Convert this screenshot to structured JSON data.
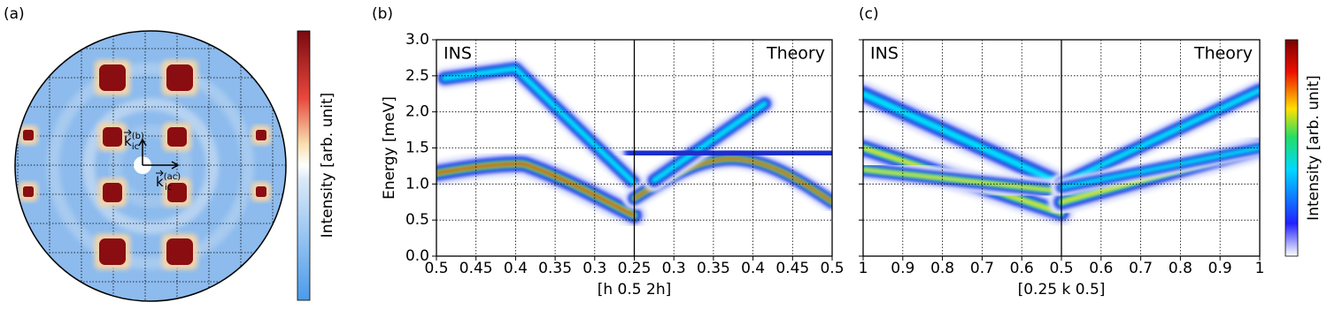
{
  "chart_data": [
    {
      "type": "map",
      "panel_label": "(a)",
      "colorbar_label": "Intensity [arb. unit]",
      "vector_symbol": "k",
      "vector_labels": [
        {
          "sup": "(b)",
          "sub": "ic"
        },
        {
          "sup": "(ac)",
          "sub": "ic"
        }
      ]
    },
    {
      "type": "heatmap",
      "panel_label": "(b)",
      "ylabel": "Energy [meV]",
      "xlabel": "[h 0.5 2h]",
      "ylim": [
        0,
        3
      ],
      "grid": true,
      "yticks": [
        {
          "value": 0,
          "label": "0.0"
        },
        0.5,
        {
          "value": 1,
          "label": "1.0"
        },
        1.5,
        {
          "value": 2,
          "label": "2.0"
        },
        2.5,
        {
          "value": 3,
          "label": "3.0"
        }
      ],
      "panels": [
        {
          "title": "INS",
          "xlim": [
            0.5,
            0.25
          ],
          "xticks": [
            0.5,
            0.45,
            0.4,
            0.35,
            0.3,
            0.25
          ]
        },
        {
          "title": "Theory",
          "xlim": [
            0.25,
            0.5
          ],
          "xticks": [
            0.3,
            0.35,
            0.4,
            0.45,
            0.5
          ]
        }
      ]
    },
    {
      "type": "heatmap",
      "panel_label": "(c)",
      "xlabel": "[0.25 k 0.5]",
      "colorbar_label": "Intensity [arb. unit]",
      "ylim": [
        0,
        3
      ],
      "grid": true,
      "yticks": [
        0,
        0.5,
        1,
        1.5,
        2,
        2.5,
        3
      ],
      "panels": [
        {
          "title": "INS",
          "xlim": [
            1,
            0.5
          ],
          "xticks": [
            1,
            0.9,
            0.8,
            0.7,
            0.6,
            0.5
          ]
        },
        {
          "title": "Theory",
          "xlim": [
            0.5,
            1
          ],
          "xticks": [
            0.6,
            0.7,
            0.8,
            0.9,
            1
          ]
        }
      ]
    }
  ]
}
